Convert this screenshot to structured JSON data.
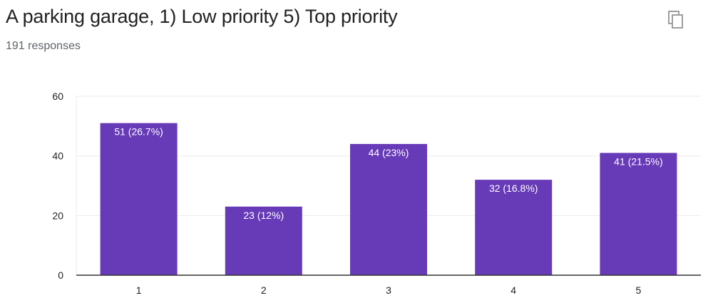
{
  "header": {
    "title": "A parking garage, 1) Low priority 5) Top priority",
    "responses": "191 responses",
    "copy_icon": "copy-icon"
  },
  "colors": {
    "bar": "#673ab7",
    "grid": "#ebebeb",
    "axis": "#333333",
    "icon": "#9e9e9e"
  },
  "chart_data": {
    "type": "bar",
    "title": "A parking garage, 1) Low priority 5) Top priority",
    "xlabel": "",
    "ylabel": "",
    "categories": [
      "1",
      "2",
      "3",
      "4",
      "5"
    ],
    "values": [
      51,
      23,
      44,
      32,
      41
    ],
    "data_labels": [
      "51 (26.7%)",
      "23 (12%)",
      "44 (23%)",
      "32 (16.8%)",
      "41 (21.5%)"
    ],
    "ylim": [
      0,
      60
    ],
    "yticks": [
      0,
      20,
      40,
      60
    ],
    "grid": true,
    "legend": "none"
  }
}
